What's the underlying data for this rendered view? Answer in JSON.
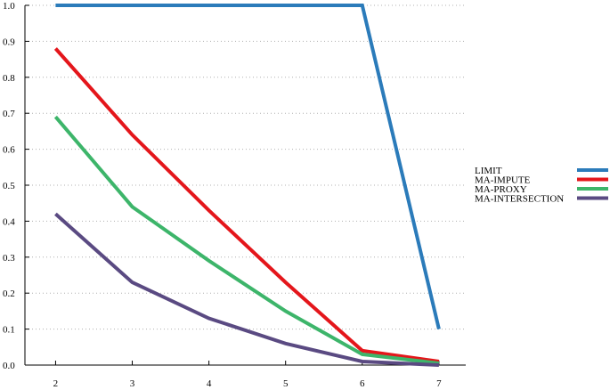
{
  "chart_data": {
    "type": "line",
    "title": "",
    "xlabel": "",
    "ylabel": "",
    "x": [
      2,
      3,
      4,
      5,
      6,
      7
    ],
    "xlim": [
      1.6,
      7.35
    ],
    "ylim": [
      0,
      1.0
    ],
    "x_ticks": [
      "2",
      "3",
      "4",
      "5",
      "6",
      "7"
    ],
    "y_ticks": [
      "0.0",
      "0.1",
      "0.2",
      "0.3",
      "0.4",
      "0.5",
      "0.6",
      "0.7",
      "0.8",
      "0.9",
      "1.0"
    ],
    "grid": "horizontal dotted",
    "legend_position": "right",
    "series": [
      {
        "name": "LIMIT",
        "color": "#2b7bba",
        "values": [
          1.0,
          1.0,
          1.0,
          1.0,
          1.0,
          0.1
        ]
      },
      {
        "name": "MA-IMPUTE",
        "color": "#e4161b",
        "values": [
          0.88,
          0.64,
          0.43,
          0.23,
          0.04,
          0.01
        ]
      },
      {
        "name": "MA-PROXY",
        "color": "#3db56a",
        "values": [
          0.69,
          0.44,
          0.29,
          0.15,
          0.03,
          0.005
        ]
      },
      {
        "name": "MA-INTERSECTION",
        "color": "#5a4a82",
        "values": [
          0.42,
          0.23,
          0.13,
          0.06,
          0.01,
          0.0
        ]
      }
    ]
  }
}
